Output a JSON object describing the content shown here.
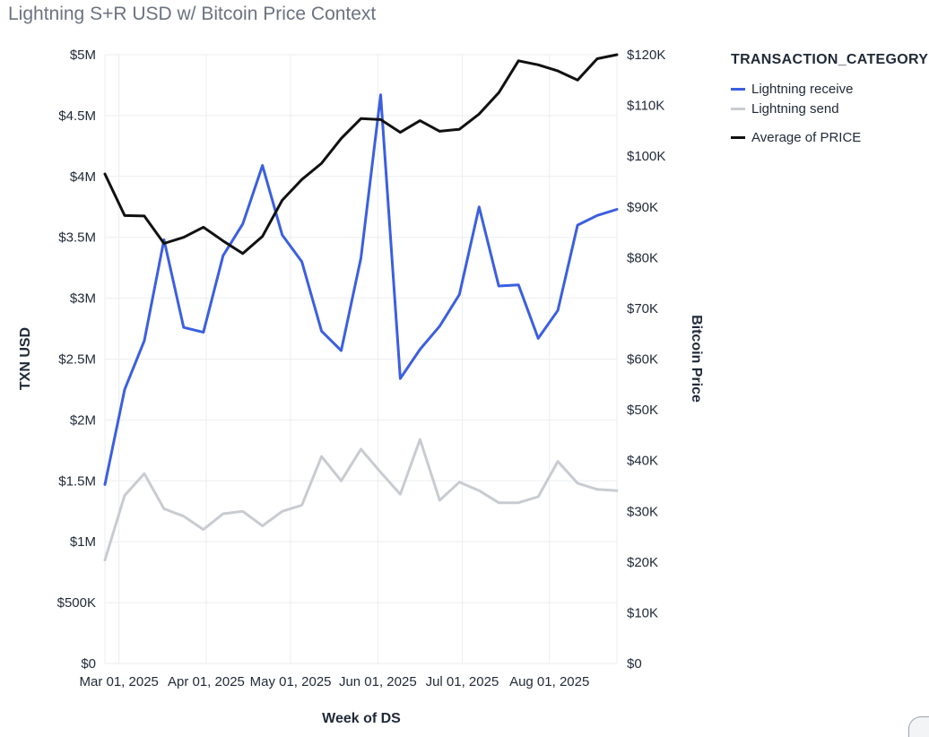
{
  "title": "Lightning S+R USD w/ Bitcoin Price Context",
  "legend": {
    "title": "TRANSACTION_CATEGORY",
    "items": [
      {
        "label": "Lightning receive",
        "color": "#3b5fe0"
      },
      {
        "label": "Lightning send",
        "color": "#c8ccd1"
      },
      {
        "label": "Average of PRICE",
        "color": "#111111"
      }
    ]
  },
  "chart_data": {
    "type": "line",
    "xlabel": "Week of DS",
    "ylabel": "TXN USD",
    "y2label": "Bitcoin Price",
    "x_ticks": [
      "Mar 01, 2025",
      "Apr 01, 2025",
      "May 01, 2025",
      "Jun 01, 2025",
      "Jul 01, 2025",
      "Aug 01, 2025"
    ],
    "y_ticks": [
      "$0",
      "$500K",
      "$1M",
      "$1.5M",
      "$2M",
      "$2.5M",
      "$3M",
      "$3.5M",
      "$4M",
      "$4.5M",
      "$5M"
    ],
    "y2_ticks": [
      "$0",
      "$10K",
      "$20K",
      "$30K",
      "$40K",
      "$50K",
      "$60K",
      "$70K",
      "$80K",
      "$90K",
      "$100K",
      "$110K",
      "$120K"
    ],
    "ylim": [
      0,
      5000000
    ],
    "y2lim": [
      0,
      120000
    ],
    "x": [
      "2025-02-24",
      "2025-03-03",
      "2025-03-10",
      "2025-03-17",
      "2025-03-24",
      "2025-03-31",
      "2025-04-07",
      "2025-04-14",
      "2025-04-21",
      "2025-04-28",
      "2025-05-05",
      "2025-05-12",
      "2025-05-19",
      "2025-05-26",
      "2025-06-02",
      "2025-06-09",
      "2025-06-16",
      "2025-06-23",
      "2025-06-30",
      "2025-07-07",
      "2025-07-14",
      "2025-07-21",
      "2025-07-28",
      "2025-08-04",
      "2025-08-11",
      "2025-08-18",
      "2025-08-25"
    ],
    "series": [
      {
        "name": "Lightning receive",
        "axis": "left",
        "color": "#3b5fe0",
        "values": [
          1470000,
          2250000,
          2650000,
          3480000,
          2760000,
          2720000,
          3350000,
          3610000,
          4090000,
          3520000,
          3300000,
          2730000,
          2570000,
          3330000,
          4670000,
          2340000,
          2580000,
          2770000,
          3030000,
          3750000,
          3100000,
          3110000,
          2670000,
          2900000,
          3600000,
          3680000,
          3730000
        ]
      },
      {
        "name": "Lightning send",
        "axis": "left",
        "color": "#c8ccd1",
        "values": [
          850000,
          1380000,
          1560000,
          1270000,
          1210000,
          1100000,
          1230000,
          1250000,
          1130000,
          1250000,
          1300000,
          1700000,
          1500000,
          1760000,
          1570000,
          1390000,
          1840000,
          1340000,
          1490000,
          1420000,
          1320000,
          1320000,
          1370000,
          1660000,
          1480000,
          1430000,
          1420000
        ]
      },
      {
        "name": "Average of PRICE",
        "axis": "right",
        "color": "#111111",
        "values": [
          96500,
          88300,
          88200,
          82800,
          84000,
          86000,
          83300,
          80800,
          84200,
          91300,
          95400,
          98600,
          103500,
          107400,
          107200,
          104700,
          107000,
          104900,
          105300,
          108300,
          112500,
          118800,
          118000,
          116800,
          115000,
          119200,
          120000
        ]
      }
    ]
  }
}
